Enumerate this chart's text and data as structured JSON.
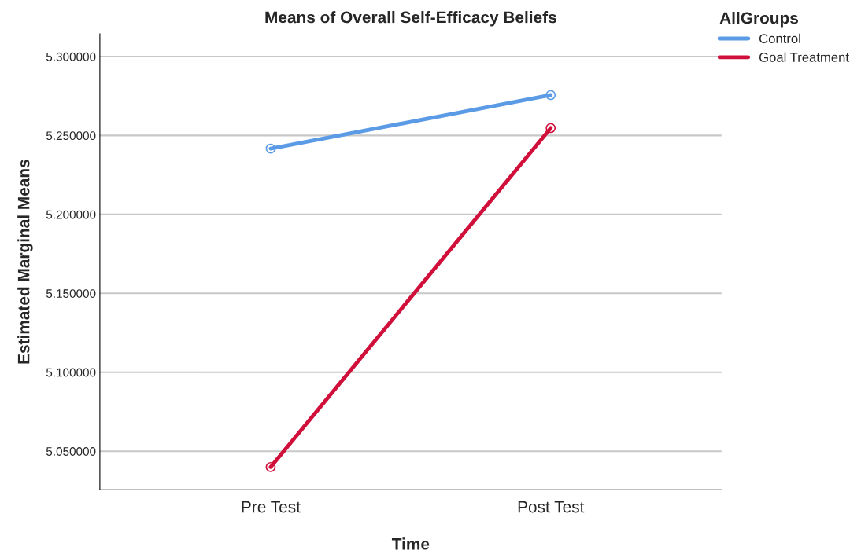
{
  "chart_data": {
    "type": "line",
    "title": "Means of Overall Self-Efficacy Beliefs",
    "xlabel": "Time",
    "ylabel": "Estimated Marginal Means",
    "legend_title": "AllGroups",
    "categories": [
      "Pre Test",
      "Post Test"
    ],
    "series": [
      {
        "name": "Control",
        "color": "#5b9be6",
        "values": [
          5.2417,
          5.2756
        ]
      },
      {
        "name": "Goal Treatment",
        "color": "#d0103a",
        "values": [
          5.04,
          5.2547
        ]
      }
    ],
    "ylim": [
      5.0256,
      5.3144
    ],
    "yticks": [
      {
        "value": 5.05,
        "label": "5.050000"
      },
      {
        "value": 5.1,
        "label": "5.100000"
      },
      {
        "value": 5.15,
        "label": "5.150000"
      },
      {
        "value": 5.2,
        "label": "5.200000"
      },
      {
        "value": 5.25,
        "label": "5.250000"
      },
      {
        "value": 5.3,
        "label": "5.300000"
      }
    ],
    "grid": "y",
    "legend": "top right",
    "marker": "circle",
    "line_style": "solid"
  }
}
